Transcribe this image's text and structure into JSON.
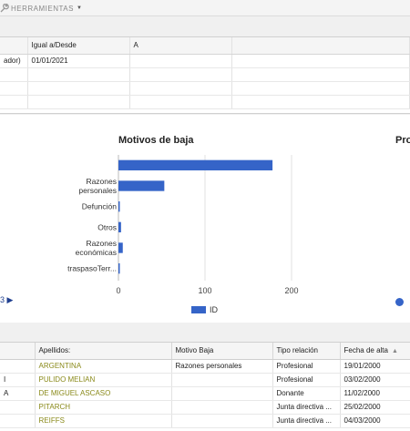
{
  "toolbar": {
    "tools_label": "HERRAMIENTAS"
  },
  "filter": {
    "headers": [
      "",
      "Igual a/Desde",
      "A",
      ""
    ],
    "rows": [
      [
        "ador)",
        "01/01/2021",
        "",
        ""
      ],
      [
        "",
        "",
        "",
        ""
      ],
      [
        "",
        "",
        "",
        ""
      ],
      [
        "",
        "",
        "",
        ""
      ]
    ]
  },
  "chart_panel": {
    "left_nav_label": "3",
    "second_title": "Pro"
  },
  "chart_data": {
    "type": "bar",
    "orientation": "horizontal",
    "title": "Motivos de baja",
    "categories": [
      "",
      "Razones personales",
      "Defunción",
      "Otros",
      "Razones económicas",
      "traspasoTerr..."
    ],
    "category_lines": [
      [
        ""
      ],
      [
        "Razones",
        "personales"
      ],
      [
        "Defunción"
      ],
      [
        "Otros"
      ],
      [
        "Razones",
        "económicas"
      ],
      [
        "traspasoTerr..."
      ]
    ],
    "series": [
      {
        "name": "ID",
        "values": [
          178,
          53,
          1,
          3,
          5,
          1
        ]
      }
    ],
    "xlim": [
      0,
      200
    ],
    "xticks": [
      "0",
      "100",
      "200"
    ],
    "grid": true,
    "legend": "bottom",
    "colors": {
      "bar": "#3564c8"
    }
  },
  "grid": {
    "headers": [
      "",
      "Apellidos:",
      "Motivo Baja",
      "Tipo relación",
      "Fecha de alta"
    ],
    "rows": [
      [
        "",
        "ARGENTINA",
        "Razones personales",
        "Profesional",
        "19/01/2000"
      ],
      [
        "I",
        "PULIDO MELIAN",
        "",
        "Profesional",
        "03/02/2000"
      ],
      [
        "A",
        "DE MIGUEL ASCASO",
        "",
        "Donante",
        "11/02/2000"
      ],
      [
        "",
        "PITARCH",
        "",
        "Junta directiva ...",
        "25/02/2000"
      ],
      [
        "",
        "REIFFS",
        "",
        "Junta directiva ...",
        "04/03/2000"
      ]
    ]
  }
}
